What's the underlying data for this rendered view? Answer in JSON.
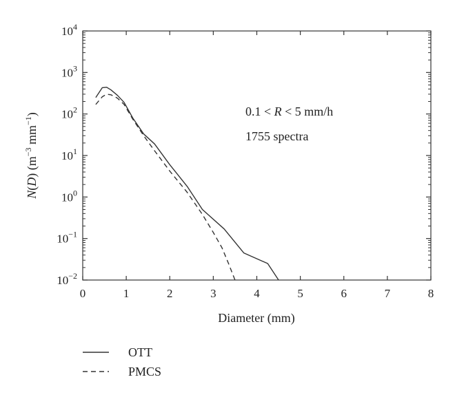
{
  "chart_data": {
    "type": "line",
    "xlabel": "Diameter (mm)",
    "ylabel": {
      "base": "N",
      "arg": "D",
      "units": "m",
      "units_exp": "−3",
      "units2": "mm",
      "units2_exp": "−1"
    },
    "xlim": [
      0,
      8
    ],
    "ylim_exponents": [
      -2,
      4
    ],
    "yscale": "log",
    "x_ticks": [
      "0",
      "1",
      "2",
      "3",
      "4",
      "5",
      "6",
      "7",
      "8"
    ],
    "y_ticks": [
      {
        "base": "10",
        "exp": "−2"
      },
      {
        "base": "10",
        "exp": "−1"
      },
      {
        "base": "10",
        "exp": "0"
      },
      {
        "base": "10",
        "exp": "1"
      },
      {
        "base": "10",
        "exp": "2"
      },
      {
        "base": "10",
        "exp": "3"
      },
      {
        "base": "10",
        "exp": "4"
      }
    ],
    "grid": false,
    "annotations": {
      "rate_prefix": "0.1 < ",
      "rate_var": "R",
      "rate_suffix": " < 5 mm/h",
      "count": "1755 spectra"
    },
    "legend_position": "below",
    "series": [
      {
        "name": "OTT",
        "style": "solid",
        "color": "#333333",
        "x": [
          0.3,
          0.45,
          0.55,
          0.65,
          0.8,
          0.95,
          1.15,
          1.4,
          1.65,
          2.0,
          2.4,
          2.75,
          3.25,
          3.7,
          4.25,
          4.5
        ],
        "y": [
          250,
          430,
          440,
          380,
          280,
          190,
          80,
          33,
          19,
          6,
          1.8,
          0.5,
          0.17,
          0.045,
          0.025,
          0.01
        ]
      },
      {
        "name": "PMCS",
        "style": "dashed",
        "color": "#333333",
        "x": [
          0.3,
          0.45,
          0.55,
          0.65,
          0.8,
          0.95,
          1.15,
          1.4,
          1.65,
          2.0,
          2.4,
          2.75,
          3.0,
          3.2,
          3.35,
          3.5
        ],
        "y": [
          170,
          260,
          300,
          290,
          240,
          170,
          75,
          30,
          13,
          4.2,
          1.3,
          0.38,
          0.14,
          0.06,
          0.025,
          0.01
        ]
      }
    ]
  }
}
